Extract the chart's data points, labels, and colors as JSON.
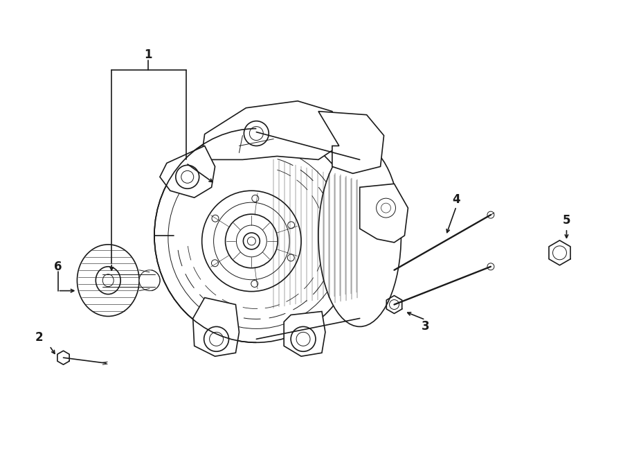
{
  "bg_color": "#ffffff",
  "line_color": "#1a1a1a",
  "lw": 1.2,
  "tlw": 0.7,
  "label_fontsize": 12,
  "fig_width": 9.0,
  "fig_height": 6.61,
  "dpi": 100
}
